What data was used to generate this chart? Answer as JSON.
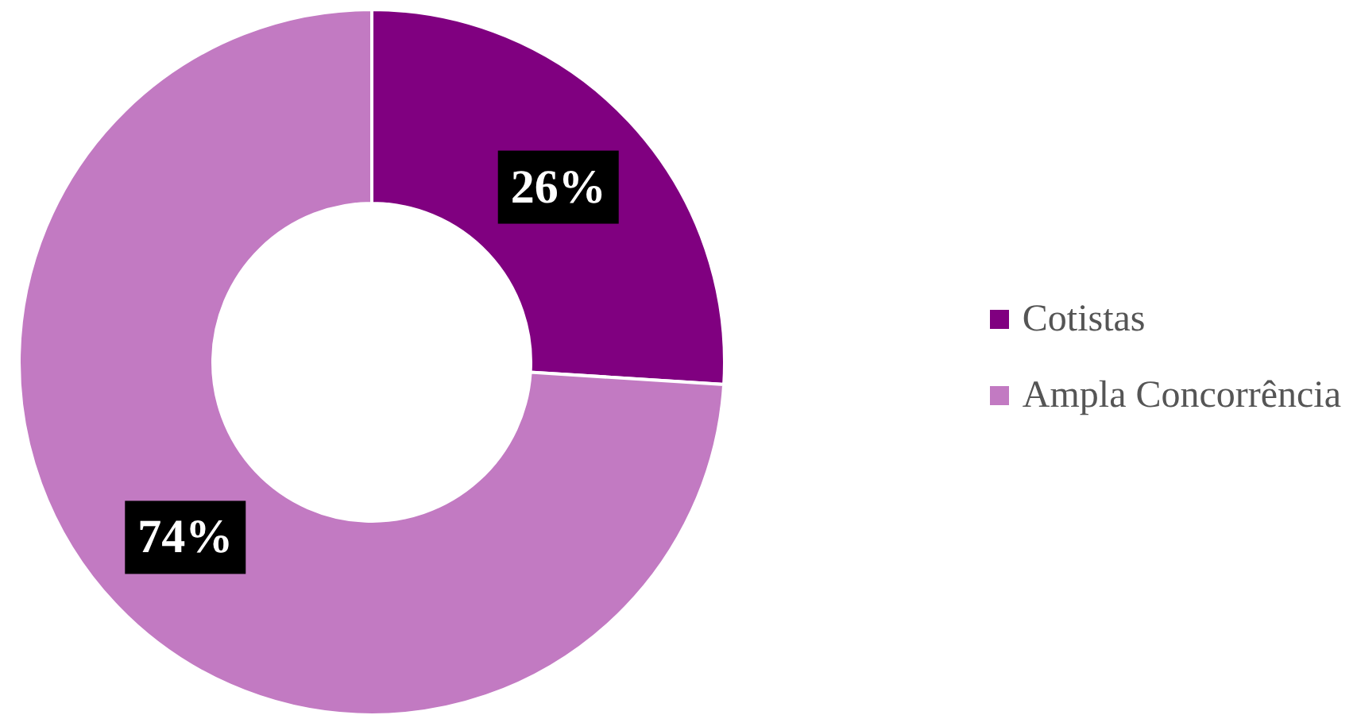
{
  "chart_data": {
    "type": "donut",
    "categories": [
      "Cotistas",
      "Ampla Concorrência"
    ],
    "values": [
      26,
      74
    ],
    "colors": [
      "#800080",
      "#c27ac2"
    ],
    "value_labels": [
      "26%",
      "74%"
    ],
    "legend": "right"
  }
}
